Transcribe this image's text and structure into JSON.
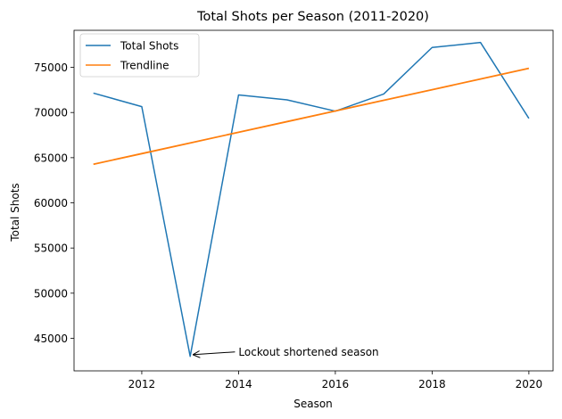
{
  "chart_data": {
    "type": "line",
    "title": "Total Shots per Season (2011-2020)",
    "xlabel": "Season",
    "ylabel": "Total Shots",
    "x": [
      2011,
      2012,
      2013,
      2014,
      2015,
      2016,
      2017,
      2018,
      2019,
      2020
    ],
    "xlim": [
      2010.6,
      2020.5
    ],
    "ylim": [
      41400,
      79100
    ],
    "xticks": [
      2012,
      2014,
      2016,
      2018,
      2020
    ],
    "yticks": [
      45000,
      50000,
      55000,
      60000,
      65000,
      70000,
      75000
    ],
    "grid": false,
    "legend_position": "top-left",
    "series": [
      {
        "name": "Total Shots",
        "color": "#1f77b4",
        "values": [
          72150,
          70650,
          43000,
          71950,
          71400,
          70150,
          72050,
          77200,
          77750,
          69350
        ]
      },
      {
        "name": "Trendline",
        "color": "#ff7f0e",
        "values": [
          64270,
          65450,
          66630,
          67810,
          68990,
          70170,
          71350,
          72530,
          73710,
          74890
        ]
      }
    ],
    "annotations": [
      {
        "text": "Lockout shortened season",
        "x": 2013,
        "y": 43000,
        "text_x": 2014,
        "text_y": 43500
      }
    ]
  }
}
